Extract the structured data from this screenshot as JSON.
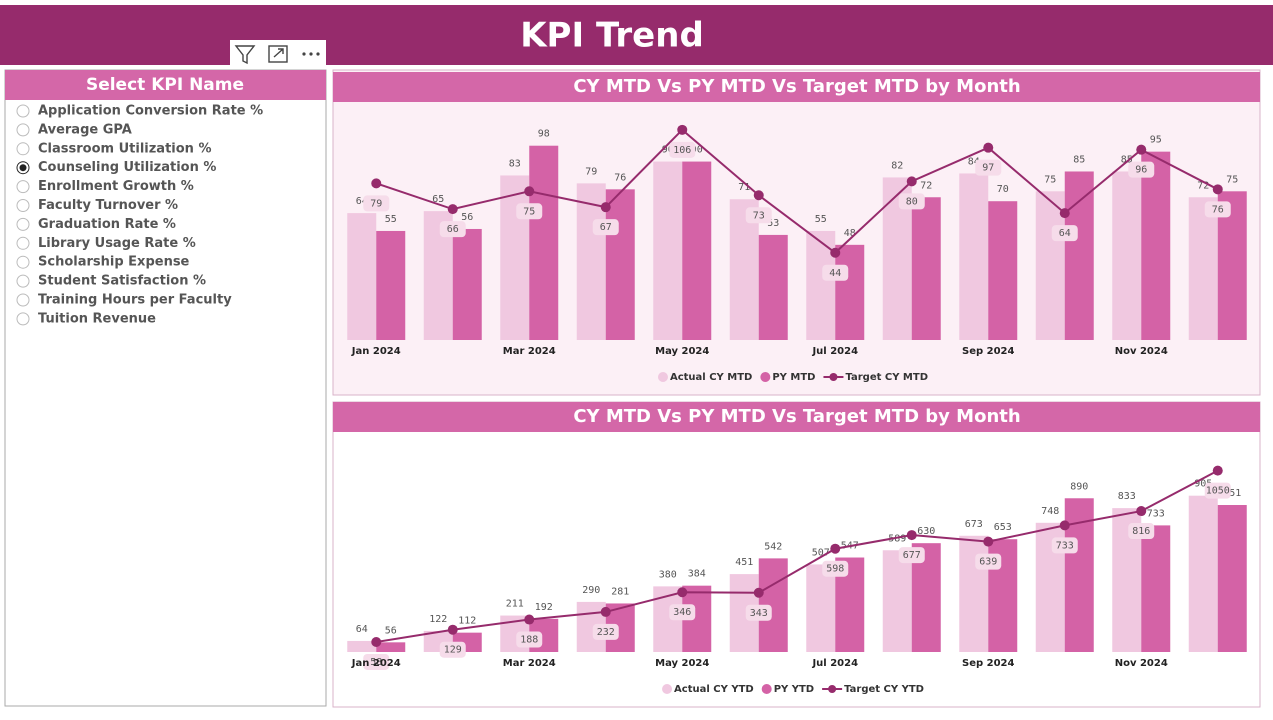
{
  "header": {
    "title": "KPI Trend"
  },
  "slicer": {
    "title": "Select KPI Name",
    "selected": 3,
    "items": [
      "Application Conversion Rate %",
      "Average GPA",
      "Classroom Utilization %",
      "Counseling Utilization %",
      "Enrollment Growth %",
      "Faculty Turnover %",
      "Graduation Rate %",
      "Library Usage Rate %",
      "Scholarship Expense",
      "Student Satisfaction %",
      "Training Hours per Faculty",
      "Tuition Revenue"
    ]
  },
  "chart_data": [
    {
      "type": "combo",
      "title": "CY MTD Vs PY MTD Vs Target MTD by Month",
      "categories": [
        "Jan 2024",
        null,
        "Mar 2024",
        null,
        "May 2024",
        null,
        "Jul 2024",
        null,
        "Sep 2024",
        null,
        "Nov 2024",
        null
      ],
      "ylim": [
        0,
        115
      ],
      "series": [
        {
          "name": "Actual CY MTD",
          "color": "#f0c8e0",
          "values": [
            64,
            65,
            83,
            79,
            90,
            71,
            55,
            82,
            84,
            75,
            85,
            72
          ]
        },
        {
          "name": "PY MTD",
          "color": "#d462a6",
          "values": [
            55,
            56,
            98,
            76,
            90,
            53,
            48,
            72,
            70,
            85,
            95,
            75
          ]
        },
        {
          "name": "Target CY MTD",
          "color": "#962b6c",
          "type": "line",
          "values": [
            79,
            66,
            75,
            67,
            106,
            73,
            44,
            80,
            97,
            64,
            96,
            76
          ]
        }
      ]
    },
    {
      "type": "combo",
      "title": "CY MTD Vs PY MTD Vs Target MTD by Month",
      "categories": [
        "Jan 2024",
        null,
        "Mar 2024",
        null,
        "May 2024",
        null,
        "Jul 2024",
        null,
        "Sep 2024",
        null,
        "Nov 2024",
        null
      ],
      "ylim": [
        0,
        1100
      ],
      "series": [
        {
          "name": "Actual CY YTD",
          "color": "#f0c8e0",
          "values": [
            64,
            122,
            211,
            290,
            380,
            451,
            507,
            589,
            673,
            748,
            833,
            905
          ]
        },
        {
          "name": "PY YTD",
          "color": "#d462a6",
          "values": [
            56,
            112,
            192,
            281,
            384,
            542,
            547,
            630,
            653,
            890,
            733,
            851
          ]
        },
        {
          "name": "Target CY YTD",
          "color": "#962b6c",
          "type": "line",
          "values": [
            58,
            129,
            188,
            232,
            346,
            343,
            598,
            677,
            639,
            733,
            816,
            1050
          ]
        }
      ]
    }
  ]
}
